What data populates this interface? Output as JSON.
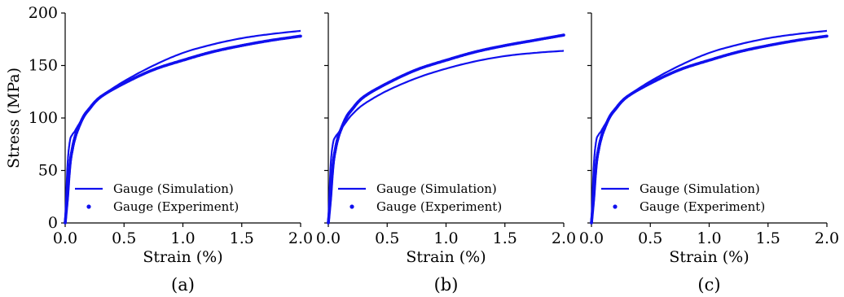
{
  "colors": {
    "series": "#1010ee",
    "axis": "#000000"
  },
  "chart_data": [
    {
      "type": "line",
      "caption": "(a)",
      "xlabel": "Strain (%)",
      "ylabel": "Stress (MPa)",
      "xlim": [
        0.0,
        2.0
      ],
      "ylim": [
        0,
        200
      ],
      "xticks": [
        "0.0",
        "0.5",
        "1.0",
        "1.5",
        "2.0"
      ],
      "yticks": [
        "0",
        "50",
        "100",
        "150",
        "200"
      ],
      "grid": false,
      "legend": {
        "placement": "lower-left",
        "entries": [
          "Gauge (Simulation)",
          "Gauge (Experiment)"
        ]
      },
      "series": [
        {
          "name": "Gauge (Simulation)",
          "style": "line",
          "x": [
            0,
            0.02,
            0.04,
            0.06,
            0.08,
            0.1,
            0.15,
            0.2,
            0.3,
            0.5,
            0.75,
            1.0,
            1.25,
            1.5,
            1.75,
            2.0
          ],
          "y": [
            0,
            55,
            78,
            84,
            87,
            91,
            100,
            108,
            120,
            135,
            150,
            162,
            170,
            176,
            180,
            183
          ]
        },
        {
          "name": "Gauge (Experiment)",
          "style": "markers",
          "x": [
            0,
            0.02,
            0.04,
            0.06,
            0.08,
            0.1,
            0.15,
            0.2,
            0.3,
            0.5,
            0.75,
            1.0,
            1.25,
            1.5,
            1.75,
            2.0
          ],
          "y": [
            0,
            25,
            55,
            70,
            80,
            87,
            100,
            108,
            120,
            133,
            146,
            155,
            163,
            169,
            174,
            178
          ]
        }
      ]
    },
    {
      "type": "line",
      "caption": "(b)",
      "xlabel": "Strain (%)",
      "ylabel": "",
      "xlim": [
        0.0,
        2.0
      ],
      "ylim": [
        0,
        200
      ],
      "xticks": [
        "0.0",
        "0.5",
        "1.0",
        "1.5",
        "2.0"
      ],
      "yticks": [],
      "grid": false,
      "legend": {
        "placement": "lower-left",
        "entries": [
          "Gauge (Simulation)",
          "Gauge (Experiment)"
        ]
      },
      "series": [
        {
          "name": "Gauge (Simulation)",
          "style": "line",
          "x": [
            0,
            0.02,
            0.04,
            0.06,
            0.08,
            0.1,
            0.15,
            0.2,
            0.3,
            0.5,
            0.75,
            1.0,
            1.25,
            1.5,
            1.75,
            2.0
          ],
          "y": [
            0,
            55,
            76,
            82,
            85,
            88,
            96,
            103,
            113,
            126,
            138,
            147,
            154,
            159,
            162,
            164
          ]
        },
        {
          "name": "Gauge (Experiment)",
          "style": "markers",
          "x": [
            0,
            0.02,
            0.04,
            0.06,
            0.08,
            0.1,
            0.15,
            0.2,
            0.3,
            0.5,
            0.75,
            1.0,
            1.25,
            1.5,
            1.75,
            2.0
          ],
          "y": [
            0,
            25,
            55,
            70,
            80,
            87,
            100,
            108,
            120,
            133,
            146,
            155,
            163,
            169,
            174,
            179
          ]
        }
      ]
    },
    {
      "type": "line",
      "caption": "(c)",
      "xlabel": "Strain (%)",
      "ylabel": "",
      "xlim": [
        0.0,
        2.0
      ],
      "ylim": [
        0,
        200
      ],
      "xticks": [
        "0.0",
        "0.5",
        "1.0",
        "1.5",
        "2.0"
      ],
      "yticks": [],
      "grid": false,
      "legend": {
        "placement": "lower-left",
        "entries": [
          "Gauge (Simulation)",
          "Gauge (Experiment)"
        ]
      },
      "series": [
        {
          "name": "Gauge (Simulation)",
          "style": "line",
          "x": [
            0,
            0.02,
            0.04,
            0.06,
            0.08,
            0.1,
            0.15,
            0.2,
            0.3,
            0.5,
            0.75,
            1.0,
            1.25,
            1.5,
            1.75,
            2.0
          ],
          "y": [
            0,
            55,
            78,
            84,
            87,
            91,
            100,
            108,
            120,
            135,
            150,
            162,
            170,
            176,
            180,
            183
          ]
        },
        {
          "name": "Gauge (Experiment)",
          "style": "markers",
          "x": [
            0,
            0.02,
            0.04,
            0.06,
            0.08,
            0.1,
            0.15,
            0.2,
            0.3,
            0.5,
            0.75,
            1.0,
            1.25,
            1.5,
            1.75,
            2.0
          ],
          "y": [
            0,
            25,
            55,
            70,
            80,
            87,
            100,
            108,
            120,
            133,
            146,
            155,
            163,
            169,
            174,
            178
          ]
        }
      ]
    }
  ]
}
